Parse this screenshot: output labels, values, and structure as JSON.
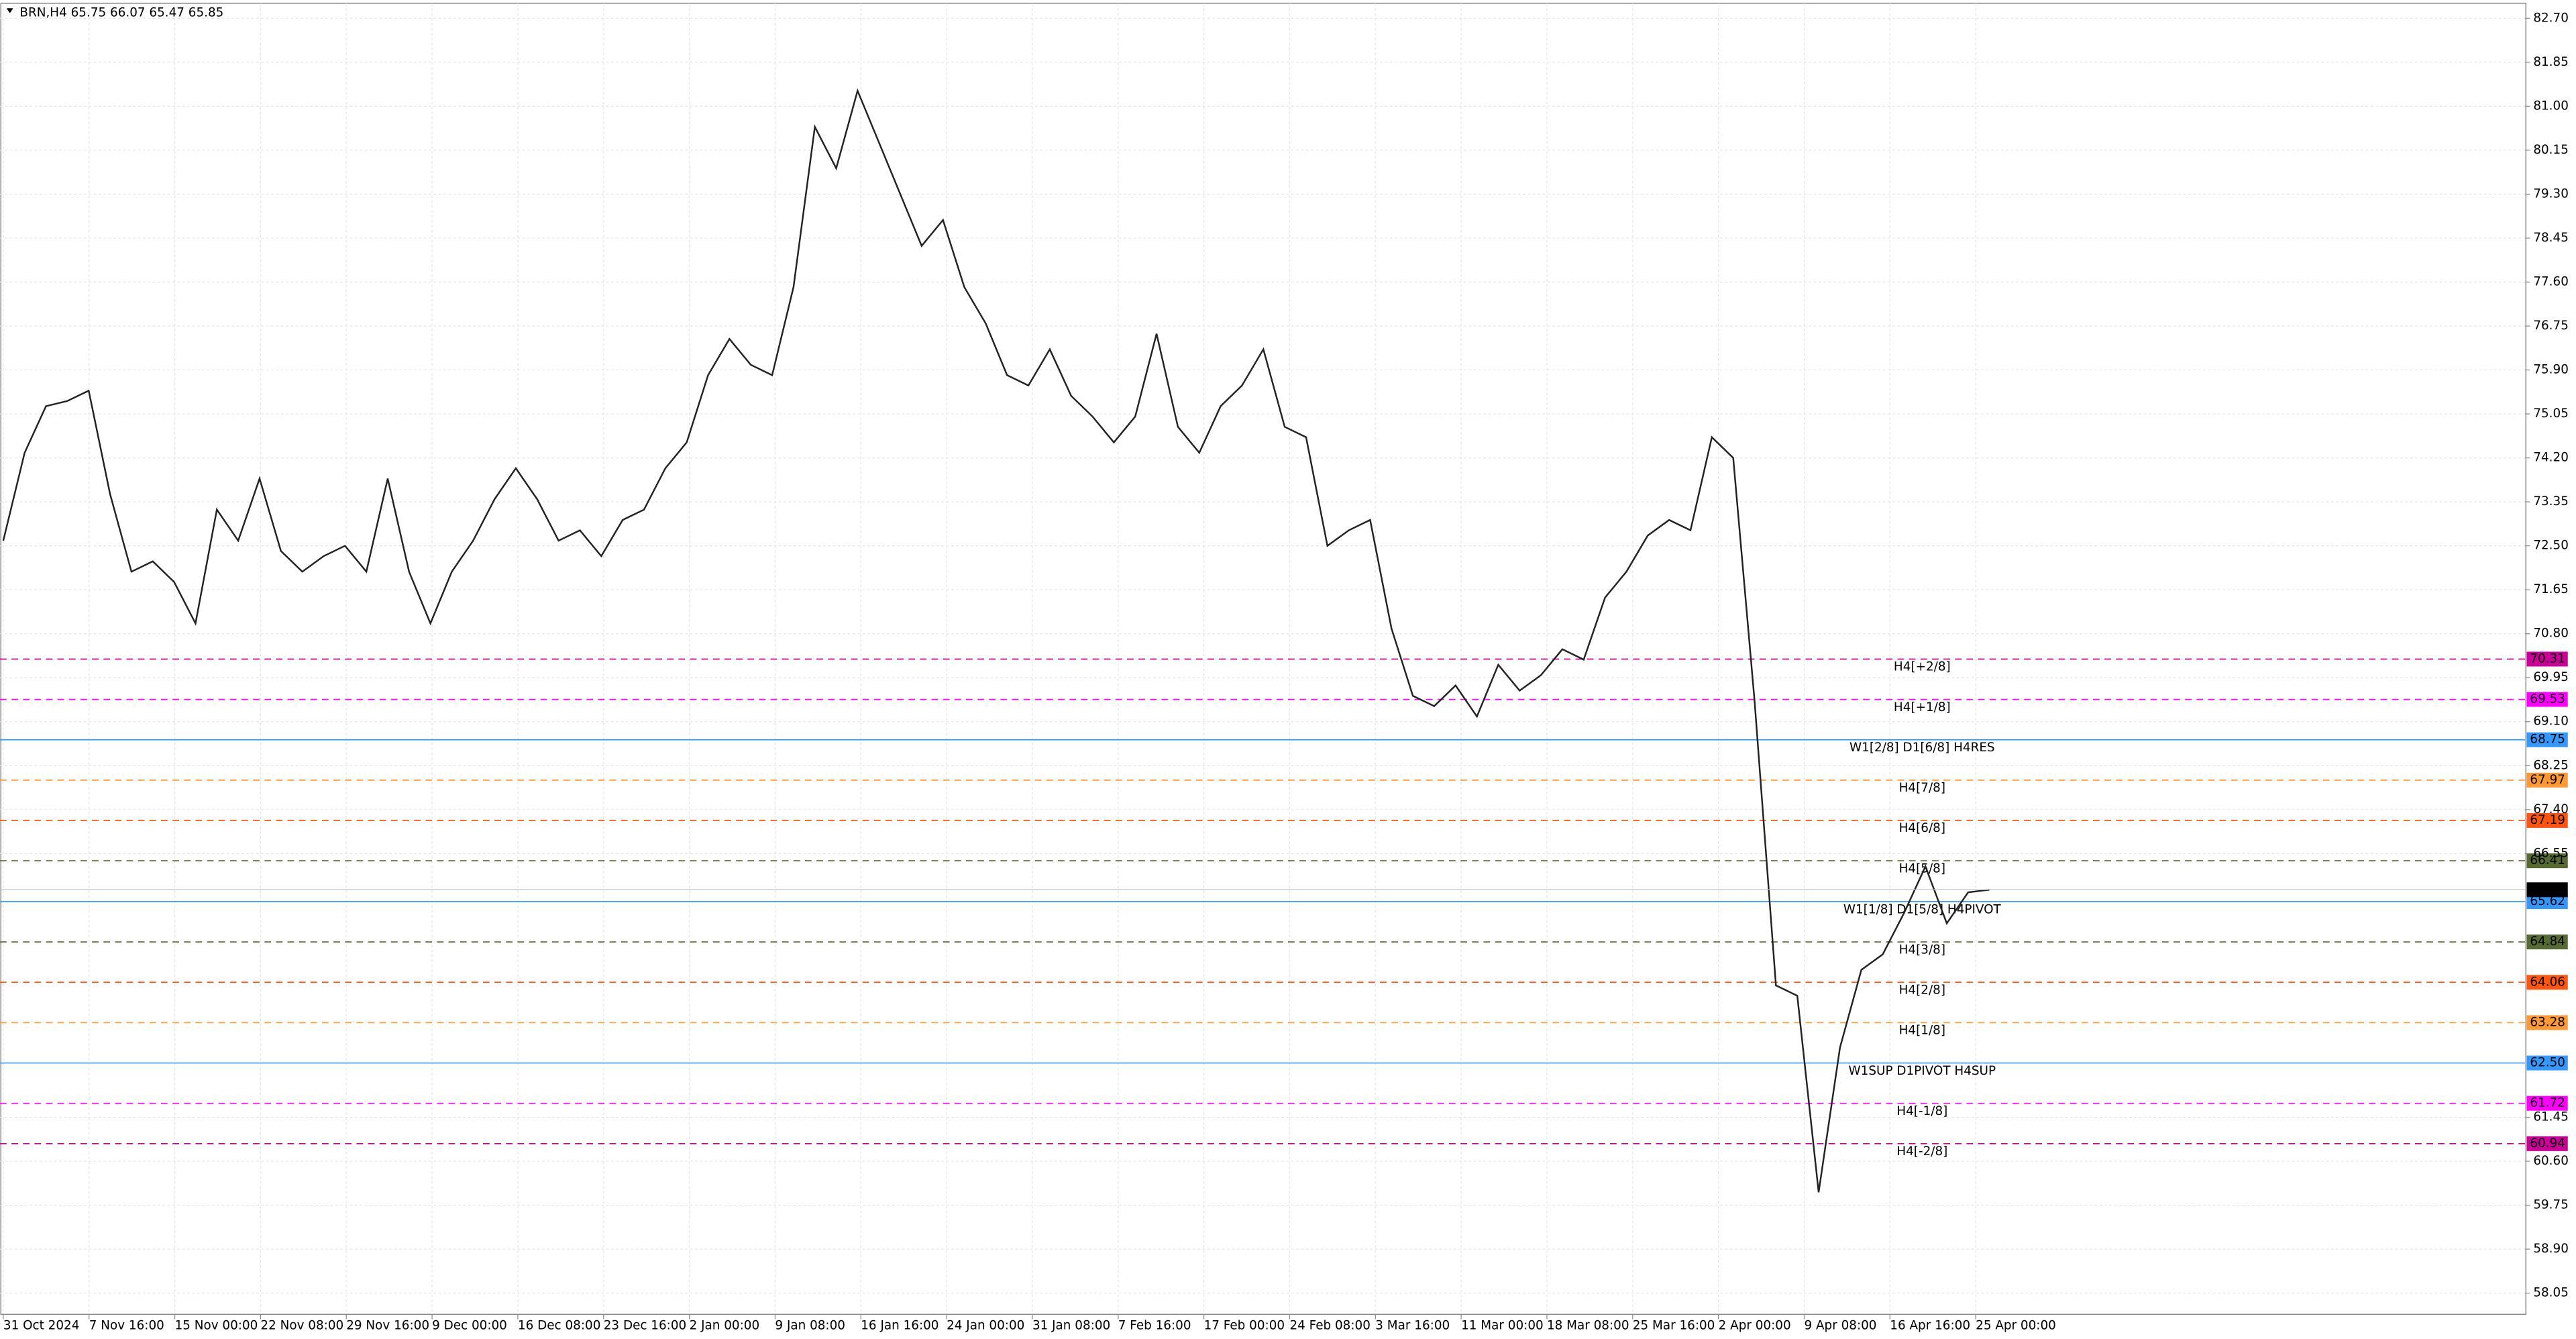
{
  "chart_data": {
    "type": "line",
    "title": "BRN,H4  65.75 66.07 65.47 65.85",
    "color": "#222222",
    "values": [
      72.6,
      74.3,
      75.2,
      75.3,
      75.5,
      73.5,
      72.0,
      72.2,
      71.8,
      71.0,
      73.2,
      72.6,
      73.8,
      72.4,
      72.0,
      72.3,
      72.5,
      72.0,
      73.8,
      72.0,
      71.0,
      72.0,
      72.6,
      73.4,
      74.0,
      73.4,
      72.6,
      72.8,
      72.3,
      73.0,
      73.2,
      74.0,
      74.5,
      75.8,
      76.5,
      76.0,
      75.8,
      77.5,
      80.6,
      79.8,
      81.3,
      80.3,
      79.3,
      78.3,
      78.8,
      77.5,
      76.8,
      75.8,
      75.6,
      76.3,
      75.4,
      75.0,
      74.5,
      75.0,
      76.6,
      74.8,
      74.3,
      75.2,
      75.6,
      76.3,
      74.8,
      74.6,
      72.5,
      72.8,
      73.0,
      70.9,
      69.6,
      69.4,
      69.8,
      69.2,
      70.2,
      69.7,
      70.0,
      70.5,
      70.3,
      71.5,
      72.0,
      72.7,
      73.0,
      72.8,
      74.6,
      74.2,
      69.5,
      64.0,
      63.8,
      60.0,
      62.8,
      64.3,
      64.6,
      65.4,
      66.3,
      65.2,
      65.8,
      65.85
    ],
    "x_labels": [
      "31 Oct 2024",
      "7 Nov 16:00",
      "15 Nov 00:00",
      "22 Nov 08:00",
      "29 Nov 16:00",
      "9 Dec 00:00",
      "16 Dec 08:00",
      "23 Dec 16:00",
      "2 Jan 00:00",
      "9 Jan 08:00",
      "16 Jan 16:00",
      "24 Jan 00:00",
      "31 Jan 08:00",
      "7 Feb 16:00",
      "17 Feb 00:00",
      "24 Feb 08:00",
      "3 Mar 16:00",
      "11 Mar 00:00",
      "18 Mar 08:00",
      "25 Mar 16:00",
      "2 Apr 00:00",
      "9 Apr 08:00",
      "16 Apr 16:00",
      "25 Apr 00:00"
    ],
    "ylim": [
      57.64,
      82.99
    ],
    "yticks": [
      {
        "value": 82.7,
        "label": "82.70"
      },
      {
        "value": 81.85,
        "label": "81.85"
      },
      {
        "value": 81,
        "label": "81.00"
      },
      {
        "value": 80.15,
        "label": "80.15"
      },
      {
        "value": 79.3,
        "label": "79.30"
      },
      {
        "value": 78.45,
        "label": "78.45"
      },
      {
        "value": 77.6,
        "label": "77.60"
      },
      {
        "value": 76.75,
        "label": "76.75"
      },
      {
        "value": 75.9,
        "label": "75.90"
      },
      {
        "value": 75.05,
        "label": "75.05"
      },
      {
        "value": 74.2,
        "label": "74.20"
      },
      {
        "value": 73.35,
        "label": "73.35"
      },
      {
        "value": 72.5,
        "label": "72.50"
      },
      {
        "value": 71.65,
        "label": "71.65"
      },
      {
        "value": 70.8,
        "label": "70.80"
      },
      {
        "value": 69.95,
        "label": "69.95"
      },
      {
        "value": 69.1,
        "label": "69.10"
      },
      {
        "value": 68.25,
        "label": "68.25"
      },
      {
        "value": 67.4,
        "label": "67.40"
      },
      {
        "value": 66.55,
        "label": "66.55"
      },
      {
        "value": 61.45,
        "label": "61.45"
      },
      {
        "value": 60.6,
        "label": "60.60"
      },
      {
        "value": 59.75,
        "label": "59.75"
      },
      {
        "value": 58.9,
        "label": "58.90"
      },
      {
        "value": 58.05,
        "label": "58.05"
      }
    ],
    "grid": true,
    "levels": {
      "names": [
        "H4[+2/8]",
        "H4[+1/8]",
        "W1[2/8] D1[6/8] H4RES",
        "H4[7/8]",
        "H4[6/8]",
        "H4[5/8]",
        "W1[1/8] D1[5/8] H4PIVOT",
        "H4[3/8]",
        "H4[2/8]",
        "H4[1/8]",
        "W1SUP D1PIVOT H4SUP",
        "H4[-1/8]",
        "H4[-2/8]"
      ],
      "values": [
        70.31,
        69.53,
        68.75,
        67.97,
        67.19,
        66.41,
        65.62,
        64.84,
        64.06,
        63.28,
        62.5,
        61.72,
        60.94
      ],
      "value_labels": [
        "70.31",
        "69.53",
        "68.75",
        "67.97",
        "67.19",
        "66.41",
        "65.62",
        "64.84",
        "64.06",
        "63.28",
        "62.50",
        "61.72",
        "60.94"
      ],
      "colors": [
        "#cc0099",
        "#ff00ff",
        "#3399ff",
        "#ff9933",
        "#ff5511",
        "#556b2f",
        "#3399ff",
        "#556b2f",
        "#ff5511",
        "#ff9933",
        "#3399ff",
        "#ff00ff",
        "#cc0099"
      ],
      "dashed": [
        true,
        true,
        false,
        true,
        true,
        true,
        false,
        true,
        true,
        true,
        false,
        true,
        true
      ]
    },
    "last_price": 65.85
  }
}
